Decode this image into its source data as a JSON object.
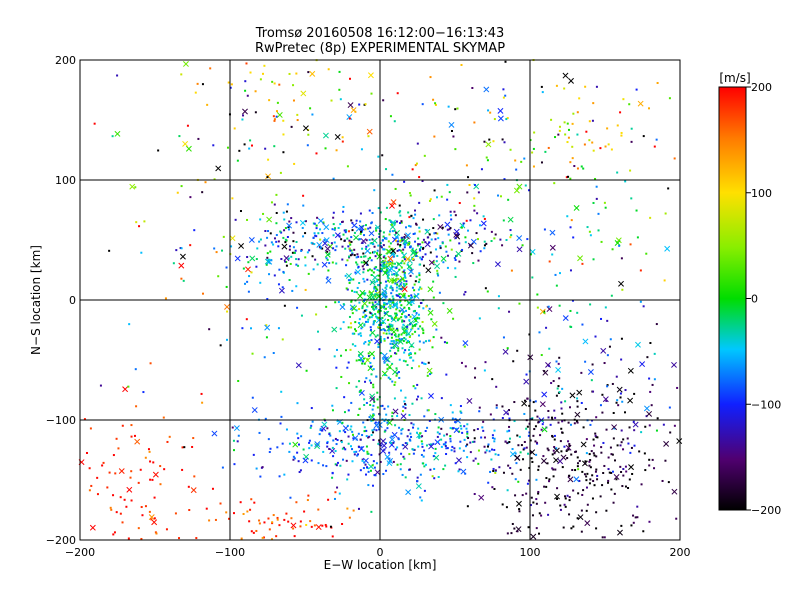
{
  "chart_data": {
    "type": "scatter",
    "title": "Tromsø 20160508 16:12:00−16:13:43",
    "subtitle": "RwPretec (8p) EXPERIMENTAL SKYMAP",
    "xlabel": "E−W location [km]",
    "ylabel": "N−S location [km]",
    "xlim": [
      -200,
      200
    ],
    "ylim": [
      -200,
      200
    ],
    "xticks": [
      -200,
      -100,
      0,
      100,
      200
    ],
    "yticks": [
      -200,
      -100,
      0,
      100,
      200
    ],
    "xtick_labels": [
      "−200",
      "−100",
      "0",
      "100",
      "200"
    ],
    "ytick_labels": [
      "−200",
      "−100",
      "0",
      "100",
      "200"
    ],
    "grid": true,
    "colorbar": {
      "label": "[m/s]",
      "range": [
        -200,
        200
      ],
      "ticks": [
        -200,
        -100,
        0,
        100,
        200
      ],
      "tick_labels": [
        "−200",
        "−100",
        "0",
        "100",
        "200"
      ],
      "colormap": "rainbow (black → purple → blue → cyan → green → yellow → orange → red)"
    },
    "markers": [
      "small dot",
      "x"
    ],
    "clusters": [
      {
        "x": 5,
        "y": -5,
        "sx": 14,
        "sy": 38,
        "n": 750,
        "v": -30,
        "vs": 40
      },
      {
        "x": 10,
        "y": -120,
        "sx": 45,
        "sy": 18,
        "n": 450,
        "v": -75,
        "vs": 45
      },
      {
        "x": 10,
        "y": 50,
        "sx": 40,
        "sy": 12,
        "n": 320,
        "v": -100,
        "vs": 70
      },
      {
        "x": 130,
        "y": -140,
        "sx": 30,
        "sy": 35,
        "n": 300,
        "v": -185,
        "vs": 25
      },
      {
        "x": 130,
        "y": -80,
        "sx": 45,
        "sy": 30,
        "n": 150,
        "v": -140,
        "vs": 50
      },
      {
        "x": 0,
        "y": 120,
        "sx": 110,
        "sy": 45,
        "n": 220,
        "v": -40,
        "vs": 140
      },
      {
        "x": -160,
        "y": -155,
        "sx": 25,
        "sy": 35,
        "n": 100,
        "v": 185,
        "vs": 20
      },
      {
        "x": -60,
        "y": -185,
        "sx": 25,
        "sy": 12,
        "n": 70,
        "v": 180,
        "vs": 30
      },
      {
        "x": 110,
        "y": 40,
        "sx": 60,
        "sy": 40,
        "n": 120,
        "v": -20,
        "vs": 100
      },
      {
        "x": -70,
        "y": 170,
        "sx": 30,
        "sy": 25,
        "n": 50,
        "v": 110,
        "vs": 40
      },
      {
        "x": 140,
        "y": 150,
        "sx": 35,
        "sy": 25,
        "n": 50,
        "v": 90,
        "vs": 40
      },
      {
        "x": -110,
        "y": 20,
        "sx": 40,
        "sy": 60,
        "n": 70,
        "v": 0,
        "vs": 150
      },
      {
        "x": 60,
        "y": -60,
        "sx": 70,
        "sy": 70,
        "n": 120,
        "v": -60,
        "vs": 80
      },
      {
        "x": -60,
        "y": 30,
        "sx": 20,
        "sy": 20,
        "n": 90,
        "v": -50,
        "vs": 40
      }
    ]
  }
}
